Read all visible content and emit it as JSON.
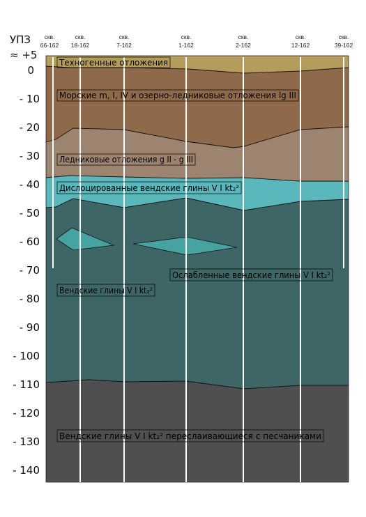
{
  "axis": {
    "title": "УПЗ",
    "surface_label": "≈ +5",
    "depths": [
      {
        "value": 0,
        "label": "0"
      },
      {
        "value": -10,
        "label": "- 10"
      },
      {
        "value": -20,
        "label": "- 20"
      },
      {
        "value": -30,
        "label": "- 30"
      },
      {
        "value": -40,
        "label": "- 40"
      },
      {
        "value": -50,
        "label": "- 50"
      },
      {
        "value": -60,
        "label": "- 60"
      },
      {
        "value": -70,
        "label": "- 70"
      },
      {
        "value": -80,
        "label": "- 80"
      },
      {
        "value": -90,
        "label": "- 90"
      },
      {
        "value": -100,
        "label": "- 100"
      },
      {
        "value": -110,
        "label": "- 110"
      },
      {
        "value": -120,
        "label": "- 120"
      },
      {
        "value": -130,
        "label": "- 130"
      },
      {
        "value": -140,
        "label": "- 140"
      }
    ]
  },
  "wells": [
    {
      "prefix": "скв.",
      "number": "66-162"
    },
    {
      "prefix": "скв.",
      "number": "18-162"
    },
    {
      "prefix": "скв.",
      "number": "7-162"
    },
    {
      "prefix": "скв.",
      "number": "1-162"
    },
    {
      "prefix": "скв.",
      "number": "2-162"
    },
    {
      "prefix": "скв.",
      "number": "12-162"
    },
    {
      "prefix": "скв.",
      "number": "39-162"
    }
  ],
  "layers": [
    {
      "id": "technogenic",
      "label": "Техногенные отложения",
      "color": "#b49c5a"
    },
    {
      "id": "marine",
      "label": "Морские m, I, IV и озерно-ледниковые отложения lg III",
      "color": "#8e6a4a"
    },
    {
      "id": "glacial",
      "label": "Ледниковые отложения g II - g III",
      "color": "#9c8470"
    },
    {
      "id": "dislocated",
      "label": "Дислоцированные вендские глины V I kt₂²",
      "color": "#5ab8bc"
    },
    {
      "id": "vendian",
      "label": "Вендские глины V I kt₂²",
      "color": "#3f6667"
    },
    {
      "id": "weakened",
      "label": "Ослабленные вендские глины V I kt₂²",
      "color": "#46a3a2"
    },
    {
      "id": "interbedded",
      "label": "Вендские глины V I kt₂² переслаивающиеся с песчаниками",
      "color": "#4f4f4f"
    }
  ]
}
